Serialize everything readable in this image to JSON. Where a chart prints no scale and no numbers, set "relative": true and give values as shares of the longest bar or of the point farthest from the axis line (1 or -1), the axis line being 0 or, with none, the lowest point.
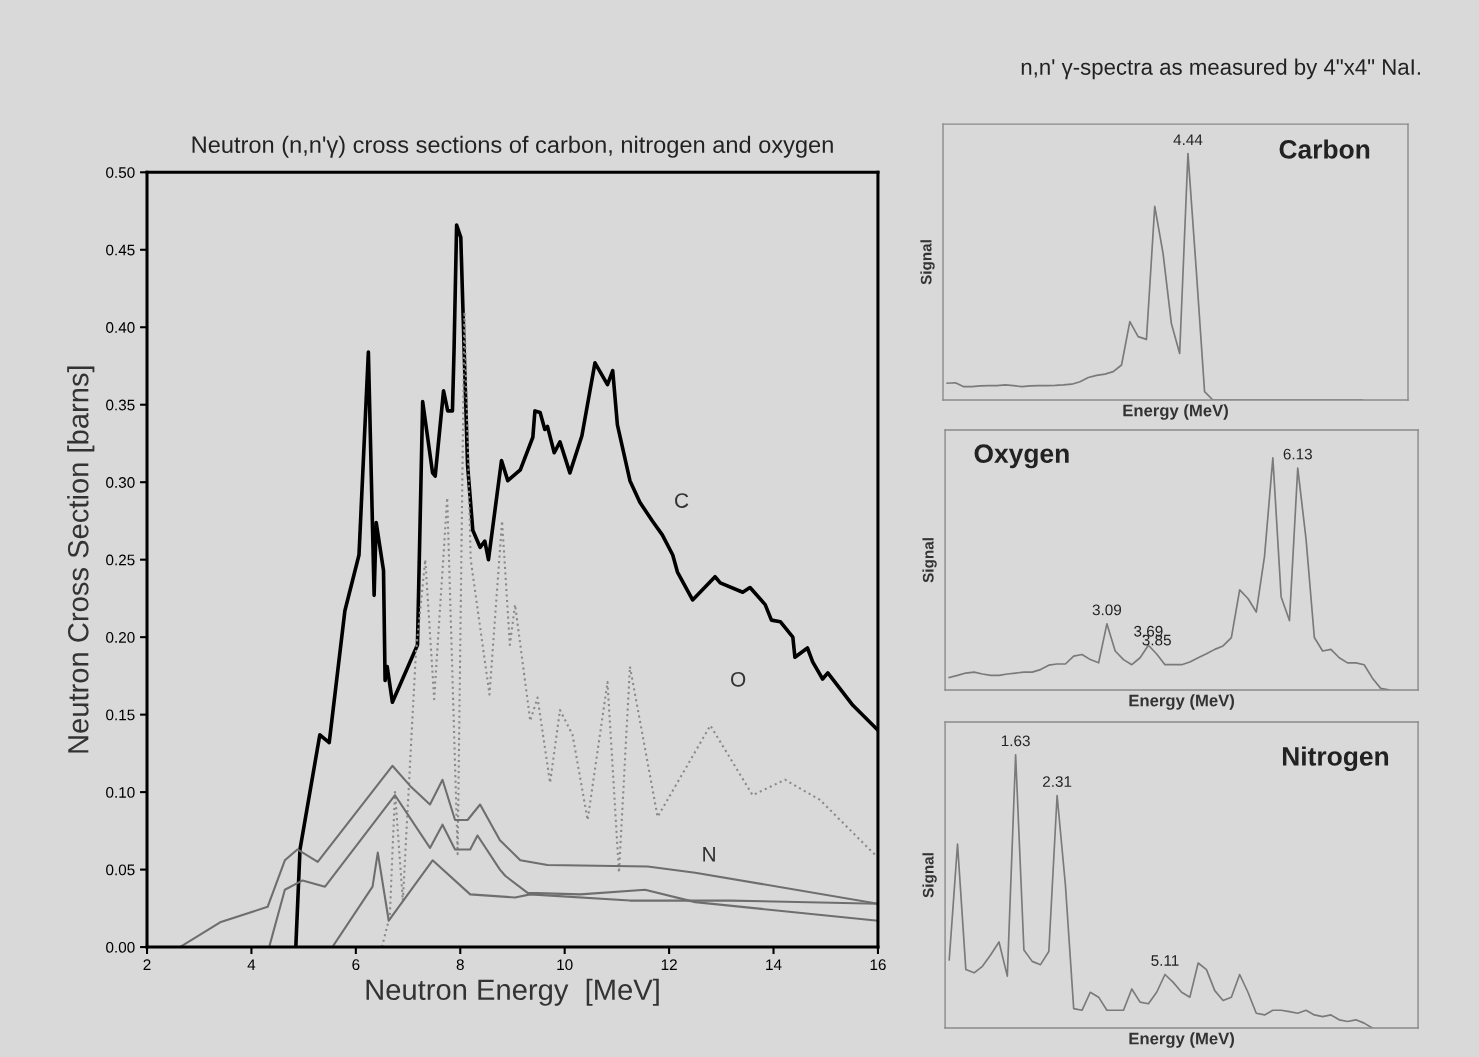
{
  "chart_data": [
    {
      "type": "line",
      "title": "Neutron (n,n'γ) cross sections of carbon, nitrogen and oxygen",
      "xlabel": "Neutron Energy  [MeV]",
      "ylabel": "Neutron Cross Section [barns]",
      "xlim": [
        2,
        16
      ],
      "ylim": [
        0,
        0.5
      ],
      "xticks": [
        2,
        4,
        6,
        8,
        10,
        12,
        14,
        16
      ],
      "yticks": [
        {
          "value": 0,
          "label": "0.00"
        },
        {
          "value": 0.05,
          "label": "0.05"
        },
        {
          "value": 0.1,
          "label": "0.10"
        },
        {
          "value": 0.15,
          "label": "0.15"
        },
        {
          "value": 0.2,
          "label": "0.20"
        },
        {
          "value": 0.25,
          "label": "0.25"
        },
        {
          "value": 0.3,
          "label": "0.30"
        },
        {
          "value": 0.35,
          "label": "0.35"
        },
        {
          "value": 0.4,
          "label": "0.40"
        },
        {
          "value": 0.45,
          "label": "0.45"
        },
        {
          "value": 0.5,
          "label": "0.50"
        }
      ],
      "grid": false,
      "marker": "none",
      "series": [
        {
          "name": "C",
          "color": "#000000",
          "line_style": "solid",
          "x": [
            4.85,
            4.93,
            5.31,
            5.49,
            5.79,
            6.06,
            6.24,
            6.35,
            6.39,
            6.53,
            6.56,
            6.6,
            6.7,
            7.18,
            7.28,
            7.47,
            7.52,
            7.68,
            7.76,
            7.85,
            7.88,
            7.93,
            8.01,
            8.14,
            8.24,
            8.38,
            8.47,
            8.54,
            8.79,
            8.91,
            9.15,
            9.39,
            9.43,
            9.53,
            9.62,
            9.67,
            9.8,
            9.91,
            10.1,
            10.33,
            10.58,
            10.82,
            10.92,
            11.01,
            11.25,
            11.44,
            11.68,
            11.87,
            12.07,
            12.16,
            12.45,
            12.88,
            12.98,
            13.41,
            13.55,
            13.84,
            13.96,
            14.13,
            14.37,
            14.41,
            14.65,
            14.75,
            14.94,
            15.04,
            15.52,
            16
          ],
          "values": [
            0,
            0.063,
            0.137,
            0.132,
            0.217,
            0.253,
            0.384,
            0.227,
            0.274,
            0.243,
            0.172,
            0.181,
            0.158,
            0.195,
            0.352,
            0.306,
            0.304,
            0.359,
            0.346,
            0.346,
            0.384,
            0.466,
            0.458,
            0.311,
            0.269,
            0.258,
            0.262,
            0.25,
            0.314,
            0.301,
            0.308,
            0.329,
            0.346,
            0.345,
            0.334,
            0.336,
            0.319,
            0.326,
            0.306,
            0.33,
            0.377,
            0.363,
            0.372,
            0.337,
            0.301,
            0.287,
            0.275,
            0.266,
            0.253,
            0.242,
            0.224,
            0.239,
            0.235,
            0.229,
            0.232,
            0.221,
            0.211,
            0.21,
            0.2,
            0.187,
            0.193,
            0.184,
            0.173,
            0.177,
            0.156,
            0.14
          ]
        },
        {
          "name": "O",
          "color": "#8a8a8a",
          "line_style": "dotted",
          "x": [
            6.5,
            6.65,
            6.75,
            6.9,
            7.15,
            7.33,
            7.5,
            7.75,
            7.95,
            8.08,
            8.2,
            8.56,
            8.8,
            8.95,
            9.05,
            9.34,
            9.48,
            9.72,
            9.91,
            10.15,
            10.44,
            10.82,
            11.04,
            11.25,
            11.78,
            12.79,
            13.6,
            14.22,
            14.89,
            15.9,
            16
          ],
          "values": [
            0,
            0.02,
            0.1,
            0.03,
            0.19,
            0.25,
            0.16,
            0.29,
            0.06,
            0.41,
            0.25,
            0.163,
            0.275,
            0.195,
            0.221,
            0.146,
            0.161,
            0.106,
            0.153,
            0.137,
            0.082,
            0.171,
            0.048,
            0.181,
            0.084,
            0.143,
            0.098,
            0.108,
            0.095,
            0.061,
            0.058
          ]
        },
        {
          "name": "N",
          "color": "#6e6e6e",
          "line_style": "solid",
          "x": [
            2.63,
            3.4,
            4.31,
            4.64,
            4.88,
            5.27,
            6.7,
            7.04,
            7.42,
            7.66,
            7.9,
            8.14,
            8.38,
            8.76,
            9.15,
            9.67,
            11.59,
            12.5,
            16
          ],
          "values": [
            0,
            0.016,
            0.026,
            0.056,
            0.063,
            0.055,
            0.117,
            0.104,
            0.092,
            0.108,
            0.082,
            0.082,
            0.092,
            0.069,
            0.056,
            0.053,
            0.052,
            0.048,
            0.028
          ]
        },
        {
          "color": "#6e6e6e",
          "line_style": "solid",
          "x": [
            4.34,
            4.64,
            4.98,
            5.41,
            6.75,
            7.42,
            7.66,
            7.9,
            8.19,
            8.33,
            8.76,
            8.86,
            9.29,
            10.3,
            11.54,
            12.5,
            16
          ],
          "values": [
            0,
            0.037,
            0.043,
            0.039,
            0.098,
            0.064,
            0.079,
            0.063,
            0.063,
            0.072,
            0.05,
            0.046,
            0.035,
            0.034,
            0.037,
            0.029,
            0.017
          ]
        },
        {
          "color": "#6e6e6e",
          "line_style": "solid",
          "x": [
            5.55,
            6.32,
            6.42,
            6.63,
            7.47,
            8.19,
            9.05,
            9.34,
            11.25,
            13.17,
            16
          ],
          "values": [
            0,
            0.039,
            0.061,
            0.017,
            0.056,
            0.034,
            0.032,
            0.034,
            0.03,
            0.03,
            0.028
          ]
        }
      ]
    },
    {
      "type": "line",
      "relative": true,
      "title": "Carbon",
      "subtitle": "n,n' γ-spectra as measured by 4\"x4\" NaI.",
      "xlabel": "Energy (MeV)",
      "ylabel": "Signal",
      "marker": "none",
      "categories": [
        null,
        null,
        null,
        null,
        null,
        null,
        null,
        null,
        null,
        null,
        null,
        null,
        null,
        null,
        null,
        null,
        null,
        null,
        null,
        null,
        null,
        null,
        null,
        null,
        null,
        null,
        null,
        null,
        null,
        null,
        null,
        null,
        null,
        null,
        null,
        null,
        null,
        null,
        null,
        null,
        null,
        null,
        null,
        null,
        null,
        null,
        null,
        null,
        null,
        null,
        null,
        null,
        null,
        null,
        null,
        null
      ],
      "series": [
        {
          "color": "#7a7a7a",
          "values": [
            0.068,
            0.07,
            0.054,
            0.054,
            0.057,
            0.058,
            0.058,
            0.061,
            0.058,
            0.054,
            0.057,
            0.058,
            0.058,
            0.059,
            0.061,
            0.064,
            0.074,
            0.091,
            0.1,
            0.105,
            0.115,
            0.142,
            0.318,
            0.257,
            0.246,
            0.786,
            0.595,
            0.311,
            0.189,
            1.0,
            0.527,
            0.034,
            0,
            0,
            0,
            0,
            0,
            0,
            0,
            0,
            0,
            0,
            0,
            0,
            0,
            0,
            0,
            0,
            0,
            0,
            0,
            null,
            null,
            null,
            null,
            null
          ]
        }
      ],
      "annotations": [
        {
          "text": "4.44",
          "y": 1.0
        }
      ]
    },
    {
      "type": "line",
      "relative": true,
      "title": "Oxygen",
      "xlabel": "Energy (MeV)",
      "ylabel": "Signal",
      "marker": "none",
      "categories": [
        null,
        null,
        null,
        null,
        null,
        null,
        null,
        null,
        null,
        null,
        null,
        null,
        null,
        null,
        null,
        null,
        null,
        null,
        null,
        null,
        null,
        null,
        null,
        null,
        null,
        null,
        null,
        null,
        null,
        null,
        null,
        null,
        null,
        null,
        null,
        null,
        null,
        null,
        null,
        null,
        null,
        null,
        null,
        null,
        null,
        null,
        null,
        null,
        null,
        null,
        null,
        null,
        null,
        null,
        null,
        null,
        null
      ],
      "series": [
        {
          "color": "#7a7a7a",
          "values": [
            0.054,
            0.063,
            0.073,
            0.077,
            0.069,
            0.063,
            0.063,
            0.069,
            0.073,
            0.077,
            0.077,
            0.088,
            0.107,
            0.112,
            0.112,
            0.146,
            0.153,
            0.131,
            0.117,
            0.285,
            0.168,
            0.131,
            0.109,
            0.139,
            0.193,
            0.155,
            0.109,
            0.109,
            0.109,
            0.121,
            0.139,
            0.156,
            0.175,
            0.19,
            0.226,
            0.431,
            0.394,
            0.336,
            0.577,
            1.0,
            0.401,
            0.299,
            0.956,
            0.65,
            0.226,
            0.168,
            0.175,
            0.139,
            0.117,
            0.117,
            0.109,
            0.051,
            0.007,
            0,
            null,
            null,
            null
          ]
        }
      ],
      "annotations": [
        {
          "text": "3.09",
          "y": 0.285
        },
        {
          "text": "3.69",
          "y": 0.193
        },
        {
          "text": "3.85",
          "y": 0.155
        },
        {
          "text": "6.13",
          "y": 0.956
        }
      ]
    },
    {
      "type": "line",
      "relative": true,
      "title": "Nitrogen",
      "xlabel": "Energy (MeV)",
      "ylabel": "Signal",
      "marker": "none",
      "categories": [
        null,
        null,
        null,
        null,
        null,
        null,
        null,
        null,
        null,
        null,
        null,
        null,
        null,
        null,
        null,
        null,
        null,
        null,
        null,
        null,
        null,
        null,
        null,
        null,
        null,
        null,
        null,
        null,
        null,
        null,
        null,
        null,
        null,
        null,
        null,
        null,
        null,
        null,
        null,
        null,
        null,
        null,
        null,
        null,
        null,
        null,
        null,
        null,
        null,
        null,
        null,
        null,
        null,
        null,
        null,
        null,
        null
      ],
      "series": [
        {
          "color": "#7a7a7a",
          "values": [
            0.25,
            0.673,
            0.214,
            0.202,
            0.226,
            0.268,
            0.315,
            0.19,
            1.0,
            0.286,
            0.244,
            0.232,
            0.28,
            0.851,
            0.524,
            0.071,
            0.065,
            0.131,
            0.113,
            0.065,
            0.065,
            0.065,
            0.143,
            0.095,
            0.089,
            0.131,
            0.196,
            0.167,
            0.131,
            0.113,
            0.238,
            0.214,
            0.137,
            0.101,
            0.113,
            0.196,
            0.131,
            0.054,
            0.048,
            0.065,
            0.065,
            0.06,
            0.054,
            0.065,
            0.048,
            0.042,
            0.048,
            0.03,
            0.024,
            0.03,
            0.018,
            0,
            null,
            null,
            null,
            null,
            null
          ]
        }
      ],
      "annotations": [
        {
          "text": "1.63",
          "y": 1.0
        },
        {
          "text": "2.31",
          "y": 0.851
        },
        {
          "text": "5.11",
          "y": 0.196
        }
      ]
    }
  ]
}
